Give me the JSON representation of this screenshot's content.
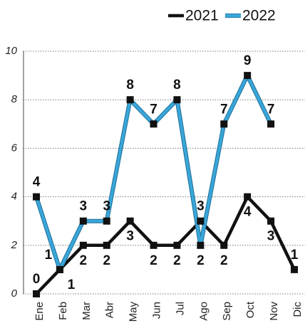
{
  "chart_data": {
    "type": "line",
    "categories": [
      "Ene",
      "Feb",
      "Mar",
      "Abr",
      "May",
      "Jun",
      "Jul",
      "Ago",
      "Sep",
      "Oct",
      "Nov",
      "Dic"
    ],
    "series": [
      {
        "name": "2021",
        "color": "#111111",
        "values": [
          0,
          1,
          2,
          2,
          3,
          2,
          2,
          3,
          2,
          4,
          3,
          1
        ]
      },
      {
        "name": "2022",
        "color": "#3aa6d8",
        "values": [
          4,
          1,
          3,
          3,
          8,
          7,
          8,
          2,
          7,
          9,
          7,
          null
        ]
      }
    ],
    "ylim": [
      0,
      10
    ],
    "yticks": [
      0,
      2,
      4,
      6,
      8,
      10
    ],
    "grid": true,
    "legend": "top-right"
  }
}
